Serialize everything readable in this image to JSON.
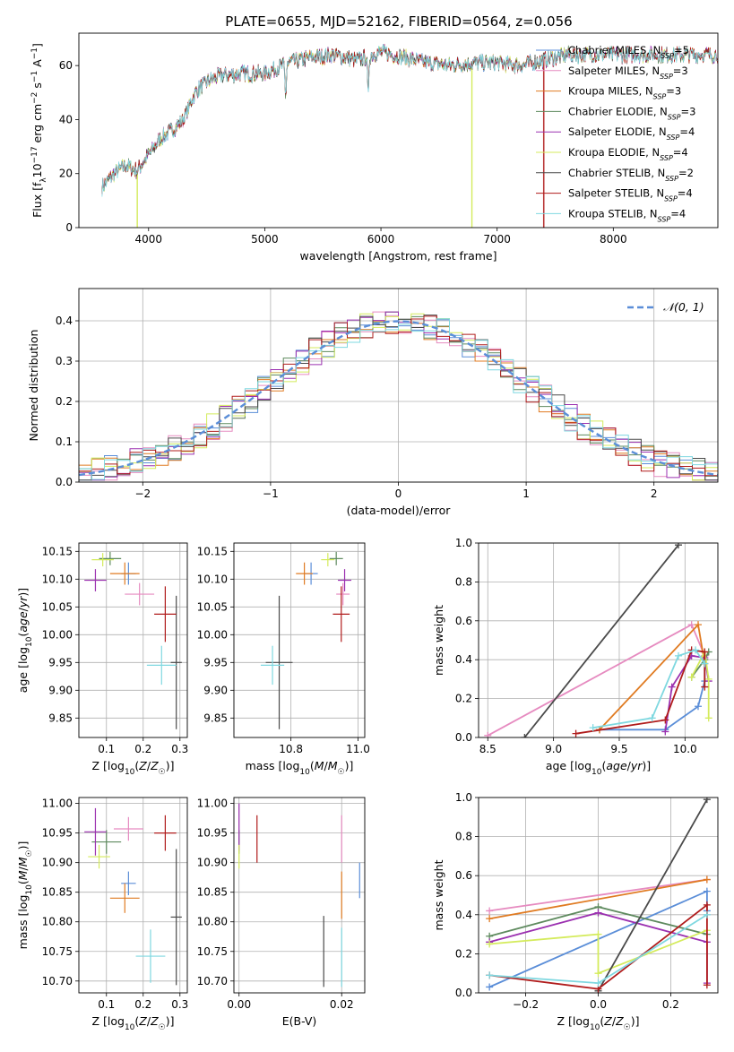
{
  "figure": {
    "title": "PLATE=0655, MJD=52162, FIBERID=0564, z=0.056"
  },
  "colors": {
    "Chabrier MILES": "#5b8ed8",
    "Salpeter MILES": "#e68bc0",
    "Kroupa MILES": "#e07b22",
    "Chabrier ELODIE": "#5e8a5e",
    "Salpeter ELODIE": "#9b30b0",
    "Kroupa ELODIE": "#d4eb5c",
    "Chabrier STELIB": "#4a4a4a",
    "Salpeter STELIB": "#b01c1c",
    "Kroupa STELIB": "#7fd8e0"
  },
  "chart_data": [
    {
      "id": "spectrum",
      "type": "line",
      "xlabel": "wavelength [Angstrom, rest frame]",
      "ylabel": "Flux [f_λ 10^-17 erg cm^-2 s^-1 A^-1]",
      "xlim": [
        3400,
        8900
      ],
      "ylim": [
        0,
        72
      ],
      "xticks": [
        4000,
        5000,
        6000,
        7000,
        8000
      ],
      "yticks": [
        0,
        20,
        40,
        60
      ],
      "grid": false,
      "legend": "right",
      "legend_labels": [
        "Chabrier MILES, N_SSP=5",
        "Salpeter MILES, N_SSP=3",
        "Kroupa MILES, N_SSP=3",
        "Chabrier ELODIE, N_SSP=3",
        "Salpeter ELODIE, N_SSP=4",
        "Kroupa ELODIE, N_SSP=4",
        "Chabrier STELIB, N_SSP=2",
        "Salpeter STELIB, N_SSP=4",
        "Kroupa STELIB, N_SSP=4"
      ],
      "legend_series": [
        "Chabrier MILES",
        "Salpeter MILES",
        "Kroupa MILES",
        "Chabrier ELODIE",
        "Salpeter ELODIE",
        "Kroupa ELODIE",
        "Chabrier STELIB",
        "Salpeter STELIB",
        "Kroupa STELIB"
      ],
      "continuum": {
        "x": [
          3600,
          3700,
          3800,
          3900,
          4000,
          4100,
          4200,
          4300,
          4400,
          4500,
          4600,
          4800,
          5000,
          5200,
          5400,
          5600,
          5800,
          6000,
          6200,
          6400,
          6600,
          6800,
          7000,
          7200,
          7400,
          7600
        ],
        "y": [
          15,
          20,
          23,
          21,
          27,
          33,
          36,
          40,
          50,
          54,
          56,
          57,
          57,
          61,
          63,
          64,
          62,
          65,
          63,
          61,
          60,
          61,
          61,
          60,
          62,
          64
        ]
      },
      "dips": [
        {
          "x": 5890,
          "y": 50
        },
        {
          "x": 5180,
          "y": 48
        }
      ],
      "edge_drops": [
        {
          "series": "Kroupa ELODIE",
          "x": 3900
        },
        {
          "series": "Kroupa ELODIE",
          "x": 6780
        },
        {
          "series": "Salpeter STELIB",
          "x": 7400
        }
      ],
      "series_end": {
        "Chabrier MILES": 7700,
        "Salpeter MILES": 7500,
        "Kroupa MILES": 7500
      }
    },
    {
      "id": "residuals",
      "type": "area",
      "xlabel": "(data-model)/error",
      "ylabel": "Normed distribution",
      "xlim": [
        -2.5,
        2.5
      ],
      "ylim": [
        0,
        0.48
      ],
      "xticks": [
        -2,
        -1,
        0,
        1,
        2
      ],
      "yticks": [
        0.0,
        0.1,
        0.2,
        0.3,
        0.4
      ],
      "grid": true,
      "legend": "top-right",
      "legend_labels": [
        "𝒩(0, 1)"
      ],
      "bin_width": 0.1,
      "gaussian": {
        "mean": 0,
        "sigma": 1
      }
    },
    {
      "id": "age-vs-Z",
      "type": "scatter",
      "xlabel": "Z [log10(Z/Z_sun)]",
      "ylabel": "age  [log10(age/yr)]",
      "xlim": [
        0.025,
        0.32
      ],
      "ylim": [
        9.815,
        10.165
      ],
      "xticks": [
        0.1,
        0.2,
        0.3
      ],
      "yticks": [
        9.85,
        9.9,
        9.95,
        10.0,
        10.05,
        10.1,
        10.15
      ],
      "grid": true,
      "points": [
        {
          "series": "Chabrier MILES",
          "x": 0.16,
          "y": 10.11,
          "xerr": 0.02,
          "yerr": 0.02
        },
        {
          "series": "Salpeter MILES",
          "x": 0.19,
          "y": 10.073,
          "xerr": 0.04,
          "yerr": 0.02
        },
        {
          "series": "Kroupa MILES",
          "x": 0.15,
          "y": 10.11,
          "xerr": 0.04,
          "yerr": 0.02
        },
        {
          "series": "Chabrier ELODIE",
          "x": 0.11,
          "y": 10.137,
          "xerr": 0.03,
          "yerr": 0.012
        },
        {
          "series": "Salpeter ELODIE",
          "x": 0.07,
          "y": 10.098,
          "xerr": 0.03,
          "yerr": 0.02
        },
        {
          "series": "Kroupa ELODIE",
          "x": 0.09,
          "y": 10.135,
          "xerr": 0.03,
          "yerr": 0.012
        },
        {
          "series": "Chabrier STELIB",
          "x": 0.29,
          "y": 9.95,
          "xerr": 0.015,
          "yerr": 0.12
        },
        {
          "series": "Salpeter STELIB",
          "x": 0.26,
          "y": 10.037,
          "xerr": 0.03,
          "yerr": 0.05
        },
        {
          "series": "Kroupa STELIB",
          "x": 0.25,
          "y": 9.945,
          "xerr": 0.04,
          "yerr": 0.035
        }
      ]
    },
    {
      "id": "age-vs-mass",
      "type": "scatter",
      "xlabel": "mass [log10(M/M_sun)]",
      "ylabel": "",
      "xlim": [
        10.63,
        11.02
      ],
      "ylim": [
        9.815,
        10.165
      ],
      "xticks": [
        10.8,
        11.0
      ],
      "yticks": [
        9.85,
        9.9,
        9.95,
        10.0,
        10.05,
        10.1,
        10.15
      ],
      "grid": true,
      "points": [
        {
          "series": "Chabrier MILES",
          "x": 10.86,
          "y": 10.11,
          "xerr": 0.02,
          "yerr": 0.02
        },
        {
          "series": "Salpeter MILES",
          "x": 10.955,
          "y": 10.073,
          "xerr": 0.02,
          "yerr": 0.02
        },
        {
          "series": "Kroupa MILES",
          "x": 10.84,
          "y": 10.11,
          "xerr": 0.025,
          "yerr": 0.02
        },
        {
          "series": "Chabrier ELODIE",
          "x": 10.935,
          "y": 10.137,
          "xerr": 0.02,
          "yerr": 0.012
        },
        {
          "series": "Salpeter ELODIE",
          "x": 10.96,
          "y": 10.098,
          "xerr": 0.02,
          "yerr": 0.02
        },
        {
          "series": "Kroupa ELODIE",
          "x": 10.91,
          "y": 10.135,
          "xerr": 0.02,
          "yerr": 0.012
        },
        {
          "series": "Chabrier STELIB",
          "x": 10.765,
          "y": 9.95,
          "xerr": 0.04,
          "yerr": 0.12
        },
        {
          "series": "Salpeter STELIB",
          "x": 10.95,
          "y": 10.037,
          "xerr": 0.025,
          "yerr": 0.05
        },
        {
          "series": "Kroupa STELIB",
          "x": 10.745,
          "y": 9.945,
          "xerr": 0.035,
          "yerr": 0.035
        }
      ]
    },
    {
      "id": "mass-weight-vs-age",
      "type": "line",
      "xlabel": "age  [log10(age/yr)]",
      "ylabel": "mass weight",
      "xlim": [
        8.43,
        10.25
      ],
      "ylim": [
        0,
        1.0
      ],
      "xticks": [
        8.5,
        9.0,
        9.5,
        10.0
      ],
      "yticks": [
        0.0,
        0.2,
        0.4,
        0.6,
        0.8,
        1.0
      ],
      "grid": true,
      "series": [
        {
          "key": "Chabrier MILES",
          "x": [
            9.35,
            9.85,
            10.1,
            10.15,
            10.15
          ],
          "y": [
            0.04,
            0.04,
            0.16,
            0.29,
            0.42
          ]
        },
        {
          "key": "Salpeter MILES",
          "x": [
            8.5,
            10.05,
            10.15
          ],
          "y": [
            0.01,
            0.58,
            0.42
          ]
        },
        {
          "key": "Kroupa MILES",
          "x": [
            9.35,
            10.1,
            10.15
          ],
          "y": [
            0.04,
            0.58,
            0.38
          ]
        },
        {
          "key": "Chabrier ELODIE",
          "x": [
            10.05,
            10.15,
            10.18
          ],
          "y": [
            0.31,
            0.4,
            0.44
          ]
        },
        {
          "key": "Salpeter ELODIE",
          "x": [
            9.85,
            9.9,
            10.05,
            10.15,
            10.18
          ],
          "y": [
            0.03,
            0.26,
            0.42,
            0.41,
            0.29
          ]
        },
        {
          "key": "Kroupa ELODIE",
          "x": [
            10.05,
            10.15,
            10.18,
            10.18
          ],
          "y": [
            0.31,
            0.44,
            0.3,
            0.1
          ]
        },
        {
          "key": "Chabrier STELIB",
          "x": [
            8.78,
            9.95
          ],
          "y": [
            0.0,
            0.99
          ]
        },
        {
          "key": "Salpeter STELIB",
          "x": [
            9.17,
            9.85,
            10.05,
            10.15,
            10.15
          ],
          "y": [
            0.02,
            0.09,
            0.45,
            0.44,
            0.26
          ]
        },
        {
          "key": "Kroupa STELIB",
          "x": [
            9.3,
            9.75,
            9.95,
            10.08,
            10.15
          ],
          "y": [
            0.05,
            0.1,
            0.42,
            0.45,
            0.38
          ]
        }
      ]
    },
    {
      "id": "mass-vs-Z",
      "type": "scatter",
      "xlabel": "Z [log10(Z/Z_sun)]",
      "ylabel": "mass [log10(M/M_sun)]",
      "xlim": [
        0.025,
        0.32
      ],
      "ylim": [
        10.68,
        11.01
      ],
      "xticks": [
        0.1,
        0.2,
        0.3
      ],
      "yticks": [
        10.7,
        10.75,
        10.8,
        10.85,
        10.9,
        10.95,
        11.0
      ],
      "grid": true,
      "points": [
        {
          "series": "Chabrier MILES",
          "x": 0.16,
          "y": 10.865,
          "xerr": 0.02,
          "yerr": 0.02
        },
        {
          "series": "Salpeter MILES",
          "x": 0.16,
          "y": 10.957,
          "xerr": 0.04,
          "yerr": 0.02
        },
        {
          "series": "Kroupa MILES",
          "x": 0.15,
          "y": 10.84,
          "xerr": 0.04,
          "yerr": 0.025
        },
        {
          "series": "Chabrier ELODIE",
          "x": 0.1,
          "y": 10.935,
          "xerr": 0.04,
          "yerr": 0.02
        },
        {
          "series": "Salpeter ELODIE",
          "x": 0.07,
          "y": 10.952,
          "xerr": 0.03,
          "yerr": 0.04
        },
        {
          "series": "Kroupa ELODIE",
          "x": 0.08,
          "y": 10.91,
          "xerr": 0.03,
          "yerr": 0.02
        },
        {
          "series": "Chabrier STELIB",
          "x": 0.29,
          "y": 10.808,
          "xerr": 0.015,
          "yerr": 0.115
        },
        {
          "series": "Salpeter STELIB",
          "x": 0.26,
          "y": 10.95,
          "xerr": 0.03,
          "yerr": 0.03
        },
        {
          "series": "Kroupa STELIB",
          "x": 0.22,
          "y": 10.742,
          "xerr": 0.04,
          "yerr": 0.045
        }
      ]
    },
    {
      "id": "mass-vs-EBV",
      "type": "scatter",
      "xlabel": "E(B-V)",
      "ylabel": "",
      "xlim": [
        -0.001,
        0.0245
      ],
      "ylim": [
        10.68,
        11.01
      ],
      "xticks": [
        0.0,
        0.02
      ],
      "yticks": [
        10.7,
        10.75,
        10.8,
        10.85,
        10.9,
        10.95,
        11.0
      ],
      "grid": true,
      "points": [
        {
          "series": "Chabrier MILES",
          "x": 0.0235,
          "y": 10.87,
          "xerr": 0,
          "yerr": 0.03
        },
        {
          "series": "Salpeter MILES",
          "x": 0.02,
          "y": 10.94,
          "xerr": 0,
          "yerr": 0.04
        },
        {
          "series": "Kroupa MILES",
          "x": 0.02,
          "y": 10.845,
          "xerr": 0,
          "yerr": 0.04
        },
        {
          "series": "Chabrier ELODIE",
          "x": 0.0,
          "y": 10.935,
          "xerr": 0,
          "yerr": 0.02
        },
        {
          "series": "Salpeter ELODIE",
          "x": 0.0,
          "y": 10.96,
          "xerr": 0,
          "yerr": 0.04
        },
        {
          "series": "Kroupa ELODIE",
          "x": 0.0,
          "y": 10.91,
          "xerr": 0,
          "yerr": 0.02
        },
        {
          "series": "Chabrier STELIB",
          "x": 0.0165,
          "y": 10.75,
          "xerr": 0,
          "yerr": 0.06
        },
        {
          "series": "Salpeter STELIB",
          "x": 0.0035,
          "y": 10.94,
          "xerr": 0,
          "yerr": 0.04
        },
        {
          "series": "Kroupa STELIB",
          "x": 0.02,
          "y": 10.74,
          "xerr": 0,
          "yerr": 0.05
        }
      ]
    },
    {
      "id": "mass-weight-vs-Z",
      "type": "line",
      "xlabel": "Z [log10(Z/Z_sun)]",
      "ylabel": "mass weight",
      "xlim": [
        -0.33,
        0.33
      ],
      "ylim": [
        0,
        1.0
      ],
      "xticks": [
        -0.2,
        0.0,
        0.2
      ],
      "yticks": [
        0.0,
        0.2,
        0.4,
        0.6,
        0.8,
        1.0
      ],
      "grid": true,
      "series": [
        {
          "key": "Chabrier MILES",
          "x": [
            -0.3,
            0.3,
            0.3
          ],
          "y": [
            0.03,
            0.52,
            0.42
          ]
        },
        {
          "key": "Salpeter MILES",
          "x": [
            -0.3,
            0.3
          ],
          "y": [
            0.42,
            0.58
          ]
        },
        {
          "key": "Kroupa MILES",
          "x": [
            -0.3,
            0.3
          ],
          "y": [
            0.38,
            0.58
          ]
        },
        {
          "key": "Chabrier ELODIE",
          "x": [
            -0.3,
            0.0,
            0.3
          ],
          "y": [
            0.29,
            0.44,
            0.3
          ]
        },
        {
          "key": "Salpeter ELODIE",
          "x": [
            -0.3,
            0.0,
            0.3,
            0.3
          ],
          "y": [
            0.26,
            0.41,
            0.26,
            0.05
          ]
        },
        {
          "key": "Kroupa ELODIE",
          "x": [
            -0.3,
            0.0,
            0.0,
            0.3
          ],
          "y": [
            0.25,
            0.3,
            0.1,
            0.32
          ]
        },
        {
          "key": "Chabrier STELIB",
          "x": [
            0.0,
            0.3
          ],
          "y": [
            0.01,
            0.99
          ]
        },
        {
          "key": "Salpeter STELIB",
          "x": [
            -0.3,
            0.0,
            0.3,
            0.3
          ],
          "y": [
            0.09,
            0.02,
            0.45,
            0.04
          ]
        },
        {
          "key": "Kroupa STELIB",
          "x": [
            -0.3,
            0.0,
            0.3
          ],
          "y": [
            0.09,
            0.05,
            0.4
          ]
        }
      ]
    }
  ]
}
